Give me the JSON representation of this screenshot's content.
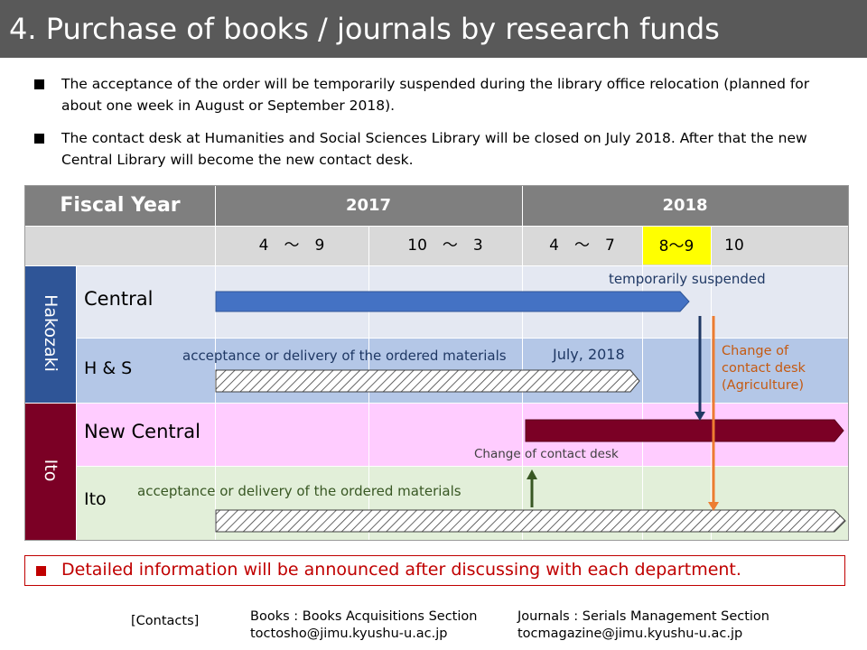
{
  "title": "4. Purchase of books / journals by research funds",
  "bullets": [
    "The acceptance of the order will be temporarily suspended during the library office relocation (planned for about one week in August or September 2018).",
    "The contact desk at Humanities and Social Sciences Library will be closed on July 2018. After that the new Central Library will become the new contact desk."
  ],
  "table": {
    "fiscal_year_label": "Fiscal Year",
    "years": [
      "2017",
      "2018"
    ],
    "periods": [
      "4　～　9",
      "10　～　3",
      "4　～　7",
      "8～9",
      "10　～"
    ],
    "groups": [
      "Hakozaki",
      "Ito"
    ],
    "rows": [
      "Central",
      "H & S",
      "New Central",
      "Ito"
    ],
    "notes": {
      "temporarily_suspended": "temporarily suspended",
      "hs_acceptance": "acceptance or delivery of the ordered materials",
      "july_2018": "July, 2018",
      "change_agriculture": [
        "Change of",
        "contact desk",
        "(Agriculture)"
      ],
      "change_contact_desk": "Change of contact desk",
      "ito_acceptance": "acceptance or delivery of the ordered materials"
    }
  },
  "callout": "Detailed information will be announced after discussing with each department.",
  "contacts": {
    "label": "[Contacts]",
    "books_line1": "Books : Books Acquisitions Section",
    "books_line2": "toctosho@jimu.kyushu-u.ac.jp",
    "journals_line1": "Journals : Serials Management Section",
    "journals_line2": "tocmagazine@jimu.kyushu-u.ac.jp"
  },
  "colors": {
    "title_bar": "#595959",
    "header_gray": "#7f7f7f",
    "period_gray": "#d9d9d9",
    "highlight_yellow": "#ffff00",
    "hakozaki_blue": "#2f5597",
    "ito_red": "#7b0025",
    "central_row": "#e4e8f2",
    "hs_row": "#b4c7e7",
    "new_central_row": "#ffccff",
    "ito_row": "#e2efd9",
    "central_bar": "#4472c4",
    "new_central_bar": "#7b0025",
    "arrow_navy": "#1f3864",
    "arrow_orange": "#ed7d31",
    "arrow_green": "#385723",
    "note_orange": "#c55a11",
    "callout_red": "#c00000"
  }
}
